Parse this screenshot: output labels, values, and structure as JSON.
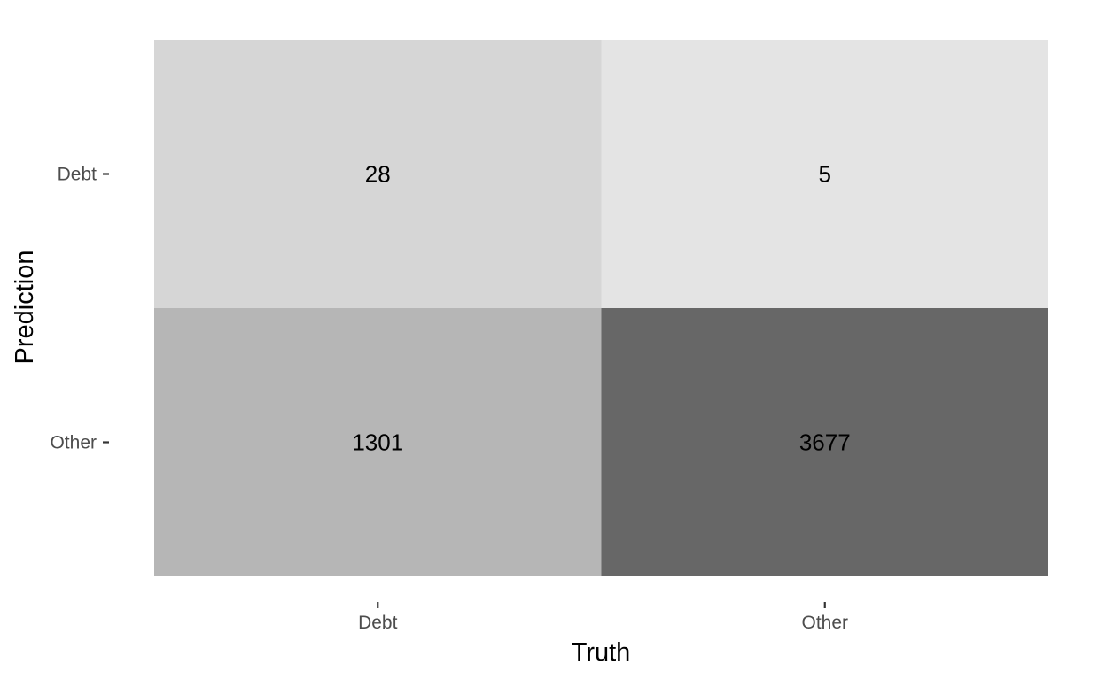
{
  "chart_data": {
    "type": "heatmap",
    "title": "",
    "xlabel": "Truth",
    "ylabel": "Prediction",
    "x_categories": [
      "Debt",
      "Other"
    ],
    "y_categories": [
      "Debt",
      "Other"
    ],
    "cells": [
      {
        "prediction": "Debt",
        "truth": "Debt",
        "value": 28
      },
      {
        "prediction": "Debt",
        "truth": "Other",
        "value": 5
      },
      {
        "prediction": "Other",
        "truth": "Debt",
        "value": 1301
      },
      {
        "prediction": "Other",
        "truth": "Other",
        "value": 3677
      }
    ],
    "fill_colors": {
      "low": "#e4e4e4",
      "mid": "#b6b6b6",
      "high": "#676767"
    },
    "grid": false,
    "legend": "none"
  }
}
